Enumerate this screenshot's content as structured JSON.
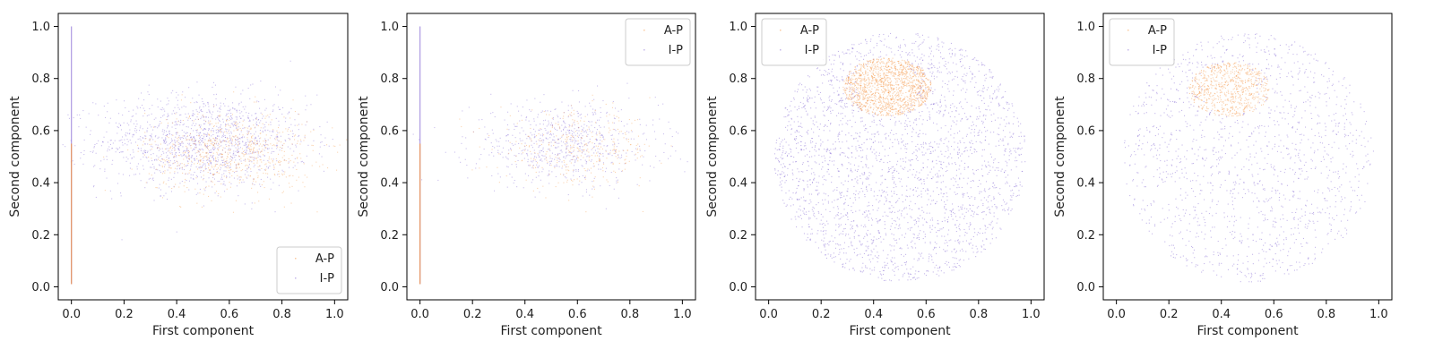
{
  "figure": {
    "colors": {
      "A-P": "#f59542",
      "I-P": "#8a6fd6",
      "axis": "#000000",
      "legend_border": "#cccccc"
    }
  },
  "chart_data": [
    {
      "type": "scatter",
      "xlabel": "First component",
      "ylabel": "Second component",
      "xlim": [
        -0.05,
        1.05
      ],
      "ylim": [
        -0.05,
        1.05
      ],
      "xticks": [
        "0.0",
        "0.2",
        "0.4",
        "0.6",
        "0.8",
        "1.0"
      ],
      "yticks": [
        "0.0",
        "0.2",
        "0.4",
        "0.6",
        "0.8",
        "1.0"
      ],
      "legend": {
        "placement": "lower right",
        "entries": [
          "A-P",
          "I-P"
        ]
      },
      "grid": false,
      "distribution": {
        "kind": "line+ellipse",
        "line": {
          "x": 0.0,
          "y_range": [
            0.01,
            1.0
          ]
        },
        "I-P": {
          "center": [
            0.5,
            0.56
          ],
          "spread": [
            0.2,
            0.09
          ],
          "density": "medium"
        },
        "A-P": {
          "center": [
            0.6,
            0.52
          ],
          "spread": [
            0.16,
            0.08
          ],
          "density": "low"
        }
      }
    },
    {
      "type": "scatter",
      "xlabel": "First component",
      "ylabel": "Second component",
      "xlim": [
        -0.05,
        1.05
      ],
      "ylim": [
        -0.05,
        1.05
      ],
      "xticks": [
        "0.0",
        "0.2",
        "0.4",
        "0.6",
        "0.8",
        "1.0"
      ],
      "yticks": [
        "0.0",
        "0.2",
        "0.4",
        "0.6",
        "0.8",
        "1.0"
      ],
      "legend": {
        "placement": "upper right",
        "entries": [
          "A-P",
          "I-P"
        ]
      },
      "grid": false,
      "distribution": {
        "kind": "line+ellipse",
        "line": {
          "x": 0.0,
          "y_range": [
            0.01,
            1.0
          ]
        },
        "I-P": {
          "center": [
            0.55,
            0.55
          ],
          "spread": [
            0.18,
            0.08
          ],
          "density": "low"
        },
        "A-P": {
          "center": [
            0.6,
            0.53
          ],
          "spread": [
            0.15,
            0.07
          ],
          "density": "very low"
        }
      }
    },
    {
      "type": "scatter",
      "xlabel": "First component",
      "ylabel": "Second component",
      "xlim": [
        -0.05,
        1.05
      ],
      "ylim": [
        -0.05,
        1.05
      ],
      "xticks": [
        "0.0",
        "0.2",
        "0.4",
        "0.6",
        "0.8",
        "1.0"
      ],
      "yticks": [
        "0.0",
        "0.2",
        "0.4",
        "0.6",
        "0.8",
        "1.0"
      ],
      "legend": {
        "placement": "upper left",
        "entries": [
          "A-P",
          "I-P"
        ]
      },
      "grid": false,
      "distribution": {
        "kind": "disk",
        "disk": {
          "center": [
            0.5,
            0.5
          ],
          "radius": 0.48
        },
        "I-P": {
          "density": "high"
        },
        "A-P": {
          "cluster_center": [
            0.45,
            0.77
          ],
          "cluster_radius": 0.14,
          "density": "medium"
        }
      }
    },
    {
      "type": "scatter",
      "xlabel": "First component",
      "ylabel": "Second component",
      "xlim": [
        -0.05,
        1.05
      ],
      "ylim": [
        -0.05,
        1.05
      ],
      "xticks": [
        "0.0",
        "0.2",
        "0.4",
        "0.6",
        "0.8",
        "1.0"
      ],
      "yticks": [
        "0.0",
        "0.2",
        "0.4",
        "0.6",
        "0.8",
        "1.0"
      ],
      "legend": {
        "placement": "upper left",
        "entries": [
          "A-P",
          "I-P"
        ]
      },
      "grid": false,
      "distribution": {
        "kind": "disk",
        "disk": {
          "center": [
            0.5,
            0.5
          ],
          "radius": 0.48
        },
        "I-P": {
          "density": "medium"
        },
        "A-P": {
          "cluster_center": [
            0.43,
            0.76
          ],
          "cluster_radius": 0.13,
          "density": "low"
        }
      }
    }
  ]
}
